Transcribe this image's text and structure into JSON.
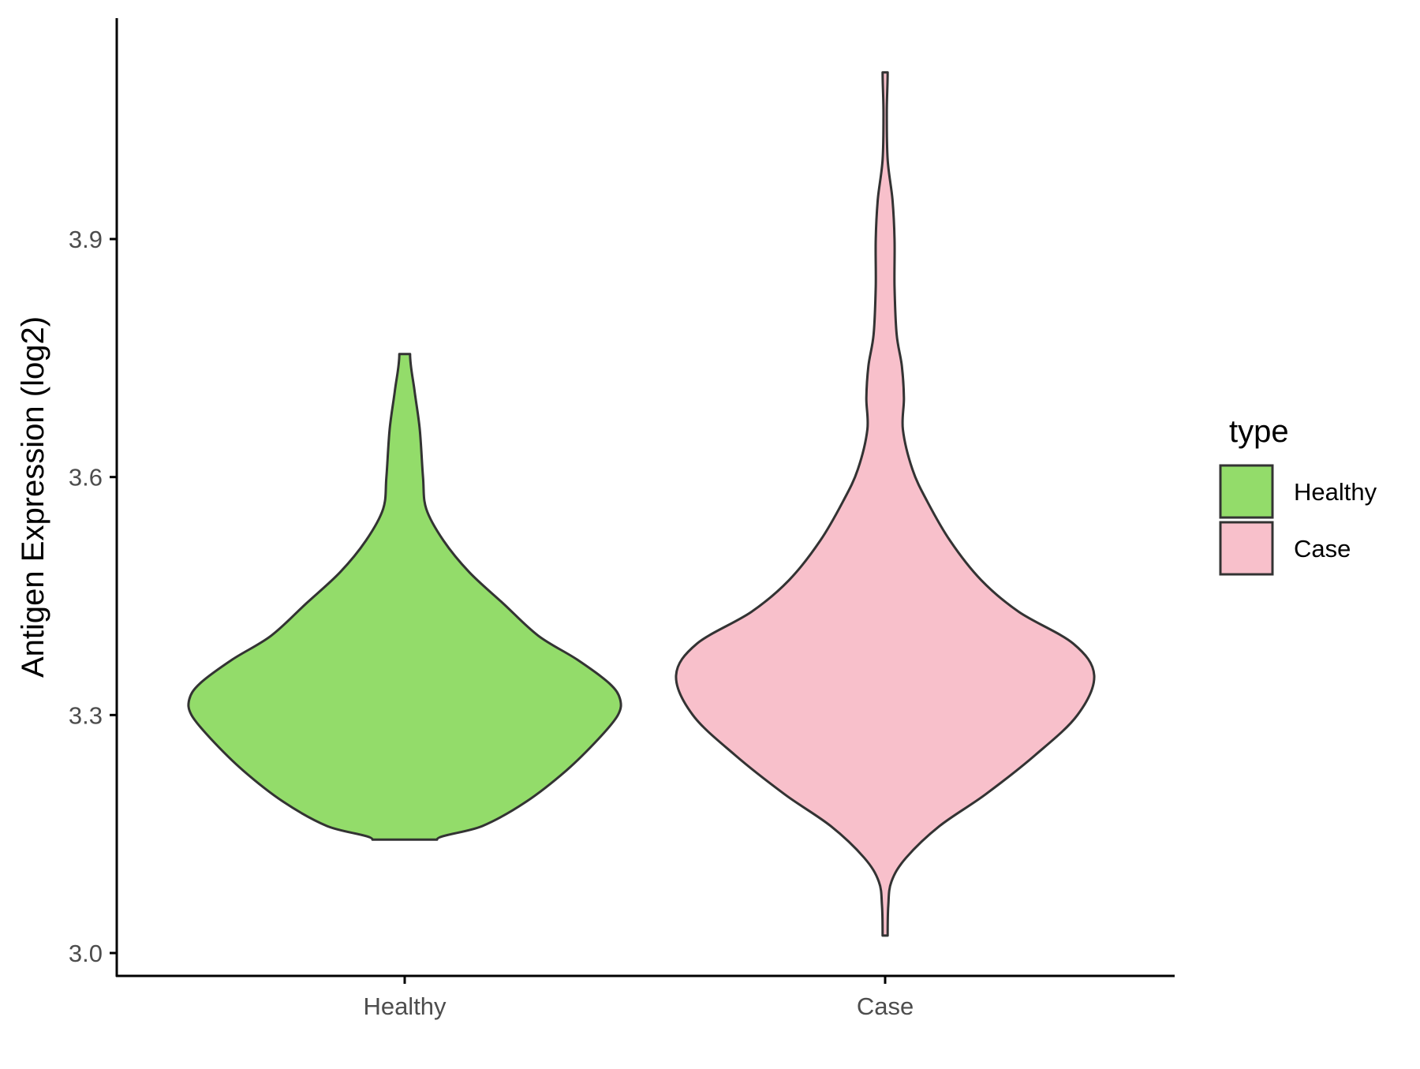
{
  "chart_data": {
    "type": "violin",
    "title": "",
    "xlabel": "",
    "ylabel": "Antigen Expression (log2)",
    "ylim": [
      2.96,
      4.22
    ],
    "yticks": [
      "3.0",
      "3.3",
      "3.6",
      "3.9"
    ],
    "grid": false,
    "legend": {
      "title": "type",
      "placement": "right",
      "entries": [
        "Healthy",
        "Case"
      ]
    },
    "categories": [
      "Healthy",
      "Case"
    ],
    "series": [
      {
        "name": "Healthy",
        "color": "#93dc6a",
        "min": 3.143,
        "max": 3.755,
        "profile": [
          [
            3.143,
            0.15
          ],
          [
            3.16,
            0.36
          ],
          [
            3.19,
            0.56
          ],
          [
            3.23,
            0.75
          ],
          [
            3.27,
            0.9
          ],
          [
            3.3,
            0.99
          ],
          [
            3.32,
            1.0
          ],
          [
            3.34,
            0.95
          ],
          [
            3.37,
            0.8
          ],
          [
            3.4,
            0.62
          ],
          [
            3.44,
            0.46
          ],
          [
            3.48,
            0.3
          ],
          [
            3.52,
            0.18
          ],
          [
            3.56,
            0.1
          ],
          [
            3.6,
            0.085
          ],
          [
            3.66,
            0.07
          ],
          [
            3.71,
            0.045
          ],
          [
            3.755,
            0.025
          ]
        ]
      },
      {
        "name": "Case",
        "color": "#f8c0cb",
        "min": 3.022,
        "max": 4.11,
        "profile": [
          [
            3.022,
            0.012
          ],
          [
            3.06,
            0.015
          ],
          [
            3.09,
            0.03
          ],
          [
            3.12,
            0.1
          ],
          [
            3.16,
            0.26
          ],
          [
            3.2,
            0.48
          ],
          [
            3.25,
            0.72
          ],
          [
            3.3,
            0.92
          ],
          [
            3.35,
            1.0
          ],
          [
            3.39,
            0.9
          ],
          [
            3.43,
            0.64
          ],
          [
            3.47,
            0.46
          ],
          [
            3.52,
            0.31
          ],
          [
            3.57,
            0.2
          ],
          [
            3.61,
            0.13
          ],
          [
            3.66,
            0.085
          ],
          [
            3.7,
            0.09
          ],
          [
            3.74,
            0.08
          ],
          [
            3.78,
            0.055
          ],
          [
            3.84,
            0.045
          ],
          [
            3.9,
            0.045
          ],
          [
            3.95,
            0.035
          ],
          [
            4.0,
            0.012
          ],
          [
            4.06,
            0.008
          ],
          [
            4.11,
            0.012
          ]
        ]
      }
    ]
  }
}
